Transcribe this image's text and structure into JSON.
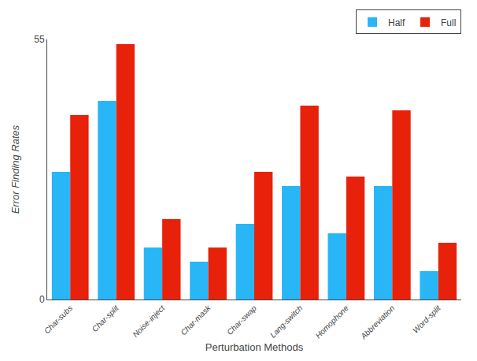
{
  "chart_data": {
    "type": "bar",
    "xlabel": "Perturbation Methods",
    "ylabel": "Error Finding Rates",
    "categories": [
      "Char-subs",
      "Char-split",
      "Noise-inject",
      "Char-mask",
      "Char-swap",
      "Lang-switch",
      "Homophone",
      "Abbreviation",
      "Word-split"
    ],
    "series": [
      {
        "name": "Half",
        "color": "#29B6F6",
        "values": [
          27,
          42,
          11,
          8,
          16,
          24,
          14,
          24,
          6
        ]
      },
      {
        "name": "Full",
        "color": "#E8220A",
        "values": [
          39,
          54,
          17,
          11,
          27,
          41,
          26,
          40,
          12
        ]
      }
    ],
    "ylim": [
      0,
      55
    ],
    "yticks": [
      0,
      55
    ],
    "grid": false,
    "legend": "upper right"
  }
}
